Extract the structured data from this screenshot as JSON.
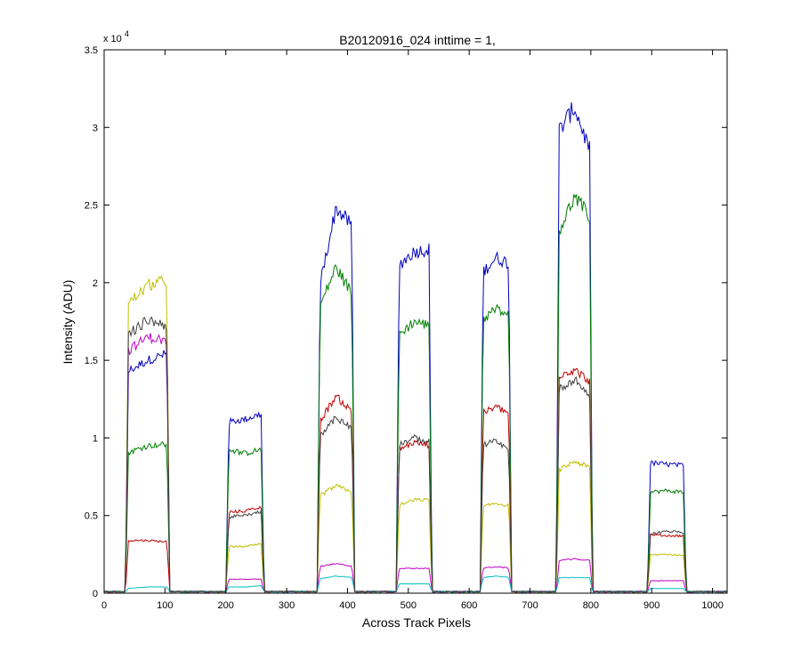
{
  "chart_data": {
    "type": "line",
    "title": "B20120916_024 inttime = 1,",
    "xlabel": "Across Track Pixels",
    "ylabel": "Intensity (ADU)",
    "y_exponent_label": "x 10",
    "y_exponent_power": "4",
    "xlim": [
      0,
      1024
    ],
    "ylim": [
      0,
      3.5
    ],
    "xticks": [
      0,
      100,
      200,
      300,
      400,
      500,
      600,
      700,
      800,
      900,
      1000
    ],
    "yticks": [
      0,
      0.5,
      1,
      1.5,
      2,
      2.5,
      3,
      3.5
    ],
    "ytick_labels": [
      "0",
      "0.5",
      "1",
      "1.5",
      "2",
      "2.5",
      "3",
      "3.5"
    ],
    "grid": false,
    "legend": "none",
    "baseline": 0.01,
    "segments": [
      {
        "start": 35,
        "end": 108
      },
      {
        "start": 200,
        "end": 263
      },
      {
        "start": 350,
        "end": 412
      },
      {
        "start": 480,
        "end": 539
      },
      {
        "start": 618,
        "end": 670
      },
      {
        "start": 743,
        "end": 803
      },
      {
        "start": 893,
        "end": 957
      }
    ],
    "series": [
      {
        "color": "#0000bf",
        "peaks": [
          [
            1.42,
            1.5,
            1.55
          ],
          [
            1.1,
            1.12,
            1.16
          ],
          [
            1.9,
            2.48,
            2.35
          ],
          [
            2.1,
            2.2,
            2.22
          ],
          [
            2.05,
            2.16,
            2.12
          ],
          [
            2.95,
            3.13,
            2.8
          ],
          [
            0.84,
            0.83,
            0.82
          ]
        ]
      },
      {
        "color": "#007f00",
        "peaks": [
          [
            0.9,
            0.95,
            0.96
          ],
          [
            0.93,
            0.9,
            0.93
          ],
          [
            1.8,
            2.1,
            1.9
          ],
          [
            1.65,
            1.75,
            1.72
          ],
          [
            1.75,
            1.83,
            1.78
          ],
          [
            2.3,
            2.55,
            2.4
          ],
          [
            0.65,
            0.66,
            0.65
          ]
        ]
      },
      {
        "color": "#bf0000",
        "peaks": [
          [
            0.34,
            0.34,
            0.33
          ],
          [
            0.52,
            0.53,
            0.56
          ],
          [
            1.08,
            1.27,
            1.15
          ],
          [
            0.92,
            0.97,
            0.95
          ],
          [
            1.15,
            1.2,
            1.15
          ],
          [
            1.4,
            1.44,
            1.35
          ],
          [
            0.38,
            0.37,
            0.37
          ]
        ]
      },
      {
        "color": "#bfbf00",
        "peaks": [
          [
            1.85,
            1.98,
            2.02
          ],
          [
            0.3,
            0.3,
            0.32
          ],
          [
            0.62,
            0.69,
            0.65
          ],
          [
            0.56,
            0.6,
            0.6
          ],
          [
            0.55,
            0.58,
            0.56
          ],
          [
            0.78,
            0.85,
            0.8
          ],
          [
            0.25,
            0.25,
            0.24
          ]
        ]
      },
      {
        "color": "#bf00bf",
        "peaks": [
          [
            1.55,
            1.65,
            1.62
          ],
          [
            0.09,
            0.09,
            0.09
          ],
          [
            0.17,
            0.19,
            0.17
          ],
          [
            0.16,
            0.16,
            0.16
          ],
          [
            0.16,
            0.17,
            0.16
          ],
          [
            0.21,
            0.22,
            0.21
          ],
          [
            0.08,
            0.08,
            0.08
          ]
        ]
      },
      {
        "color": "#00bfbf",
        "peaks": [
          [
            0.03,
            0.04,
            0.04
          ],
          [
            0.04,
            0.04,
            0.05
          ],
          [
            0.09,
            0.11,
            0.1
          ],
          [
            0.06,
            0.06,
            0.06
          ],
          [
            0.1,
            0.11,
            0.1
          ],
          [
            0.1,
            0.1,
            0.1
          ],
          [
            0.03,
            0.03,
            0.03
          ]
        ]
      },
      {
        "color": "#3f3f3f",
        "peaks": [
          [
            1.65,
            1.76,
            1.72
          ],
          [
            0.49,
            0.5,
            0.53
          ],
          [
            1.0,
            1.13,
            1.05
          ],
          [
            0.95,
            1.0,
            0.97
          ],
          [
            0.95,
            0.98,
            0.9
          ],
          [
            1.3,
            1.38,
            1.25
          ],
          [
            0.38,
            0.4,
            0.39
          ]
        ]
      }
    ]
  }
}
